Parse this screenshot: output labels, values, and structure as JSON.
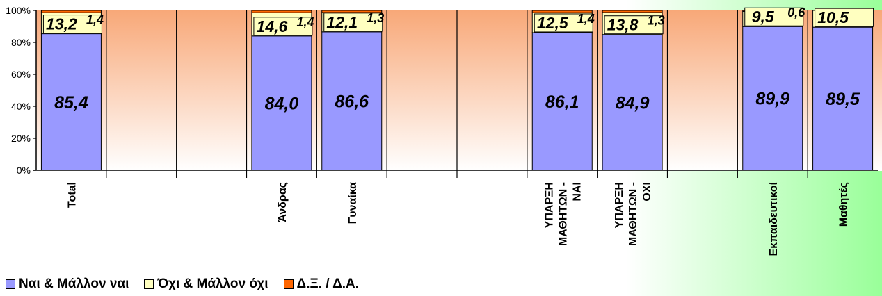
{
  "chart_data": {
    "type": "bar",
    "stacked": true,
    "orientation": "vertical",
    "categories": [
      "Total",
      "",
      "",
      "Άνδρας",
      "Γυναίκα",
      "",
      "",
      "ΥΠΑΡΞΗ ΜΑΘΗΤΩΝ - ΝΑΙ",
      "ΥΠΑΡΞΗ ΜΑΘΗΤΩΝ - ΟΧΙ",
      "",
      "Εκπαιδευτικοί",
      "Μαθητές"
    ],
    "series": [
      {
        "name": "Ναι & Μάλλον ναι",
        "color": "#9999ff",
        "values": [
          85.4,
          null,
          null,
          84.0,
          86.6,
          null,
          null,
          86.1,
          84.9,
          null,
          89.9,
          89.5
        ],
        "labels": [
          "85,4",
          "",
          "",
          "84,0",
          "86,6",
          "",
          "",
          "86,1",
          "84,9",
          "",
          "89,9",
          "89,5"
        ]
      },
      {
        "name": "Όχι & Μάλλον όχι",
        "color": "#ffffc0",
        "values": [
          13.2,
          null,
          null,
          14.6,
          12.1,
          null,
          null,
          12.5,
          13.8,
          null,
          9.5,
          10.5
        ],
        "labels": [
          "13,2",
          "",
          "",
          "14,6",
          "12,1",
          "",
          "",
          "12,5",
          "13,8",
          "",
          "9,5",
          "10,5"
        ]
      },
      {
        "name": "Δ.Ξ. / Δ.Α.",
        "color": "#ff6600",
        "values": [
          1.4,
          null,
          null,
          1.4,
          1.3,
          null,
          null,
          1.4,
          1.3,
          null,
          0.6,
          null
        ],
        "labels": [
          "1,4",
          "",
          "",
          "1,4",
          "1,3",
          "",
          "",
          "1,4",
          "1,3",
          "",
          "0,6",
          ""
        ]
      }
    ],
    "yticks": [
      "0%",
      "20%",
      "40%",
      "60%",
      "80%",
      "100%"
    ],
    "ylim": [
      0,
      100
    ],
    "grid": false,
    "legend_position": "bottom-left",
    "background": {
      "plot_gradient": [
        "#f8a878",
        "#ffffff"
      ],
      "highlight_gradient": [
        "#ffffff",
        "#99ff99"
      ]
    }
  }
}
